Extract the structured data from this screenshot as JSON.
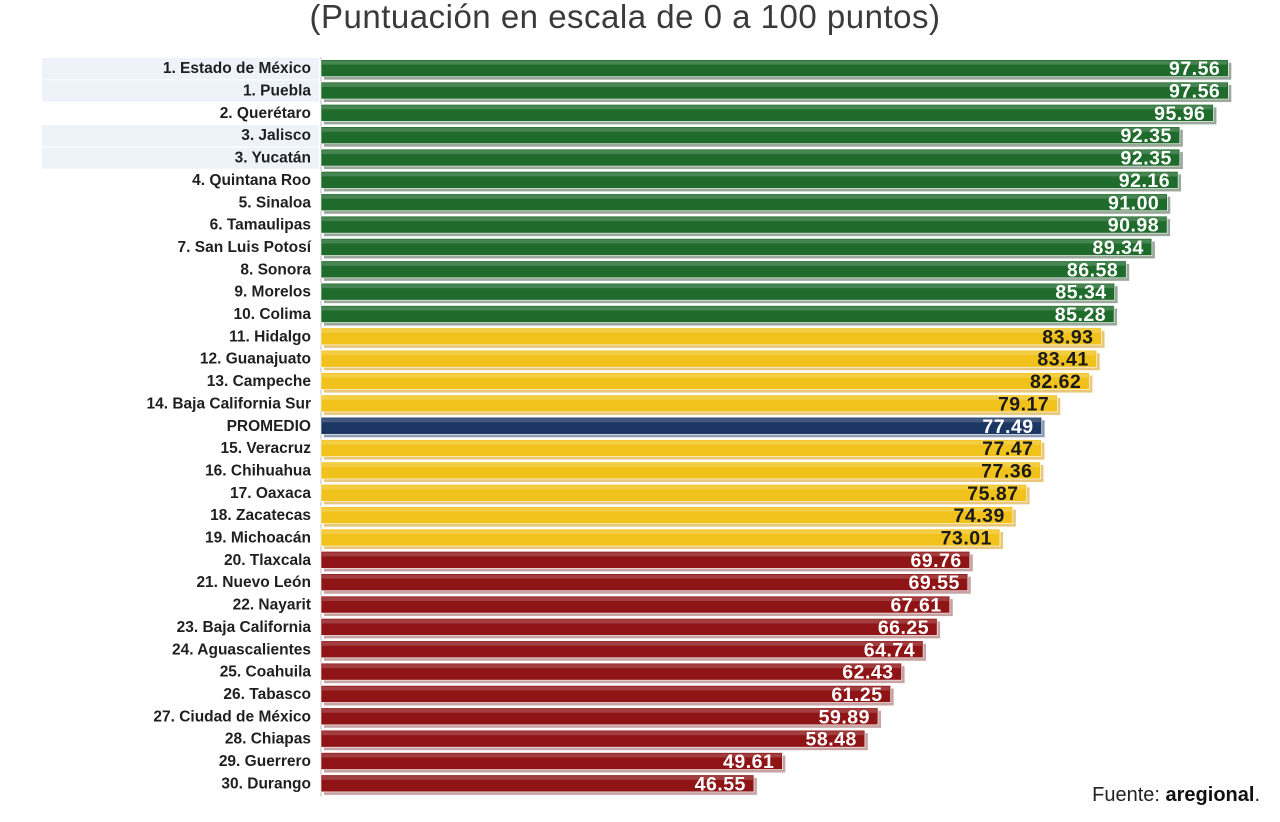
{
  "chart_data": {
    "type": "bar",
    "orientation": "horizontal",
    "title": "",
    "subtitle": "(Puntuación en escala de 0 a 100 puntos)",
    "xlim": [
      0,
      100
    ],
    "grid": false,
    "colors": {
      "green": "#1f6b2c",
      "yellow": "#f1c21b",
      "red": "#8e1416",
      "navy": "#1c3664",
      "highlight_row": "#eef3fa"
    },
    "categories": [
      "1. Estado de México",
      "1. Puebla",
      "2. Querétaro",
      "3. Jalisco",
      "3. Yucatán",
      "4. Quintana Roo",
      "5. Sinaloa",
      "6. Tamaulipas",
      "7. San Luis Potosí",
      "8. Sonora",
      "9. Morelos",
      "10. Colima",
      "11. Hidalgo",
      "12. Guanajuato",
      "13. Campeche",
      "14. Baja California Sur",
      "PROMEDIO",
      "15. Veracruz",
      "16. Chihuahua",
      "17. Oaxaca",
      "18. Zacatecas",
      "19. Michoacán",
      "20. Tlaxcala",
      "21. Nuevo León",
      "22. Nayarit",
      "23. Baja California",
      "24. Aguascalientes",
      "25. Coahuila",
      "26. Tabasco",
      "27. Ciudad de México",
      "28. Chiapas",
      "29. Guerrero",
      "30. Durango"
    ],
    "values": [
      97.56,
      97.56,
      95.96,
      92.35,
      92.35,
      92.16,
      91.0,
      90.98,
      89.34,
      86.58,
      85.34,
      85.28,
      83.93,
      83.41,
      82.62,
      79.17,
      77.49,
      77.47,
      77.36,
      75.87,
      74.39,
      73.01,
      69.76,
      69.55,
      67.61,
      66.25,
      64.74,
      62.43,
      61.25,
      59.89,
      58.48,
      49.61,
      46.55
    ],
    "value_labels": [
      "97.56",
      "97.56",
      "95.96",
      "92.35",
      "92.35",
      "92.16",
      "91.00",
      "90.98",
      "89.34",
      "86.58",
      "85.34",
      "85.28",
      "83.93",
      "83.41",
      "82.62",
      "79.17",
      "77.49",
      "77.47",
      "77.36",
      "75.87",
      "74.39",
      "73.01",
      "69.76",
      "69.55",
      "67.61",
      "66.25",
      "64.74",
      "62.43",
      "61.25",
      "59.89",
      "58.48",
      "49.61",
      "46.55"
    ],
    "bar_colors": [
      "green",
      "green",
      "green",
      "green",
      "green",
      "green",
      "green",
      "green",
      "green",
      "green",
      "green",
      "green",
      "yellow",
      "yellow",
      "yellow",
      "yellow",
      "navy",
      "yellow",
      "yellow",
      "yellow",
      "yellow",
      "yellow",
      "red",
      "red",
      "red",
      "red",
      "red",
      "red",
      "red",
      "red",
      "red",
      "red",
      "red"
    ],
    "highlighted_rows": [
      "1. Estado de México",
      "1. Puebla",
      "3. Jalisco",
      "3. Yucatán"
    ]
  },
  "source": {
    "prefix": "Fuente: ",
    "brand": "aregional",
    "suffix": "."
  }
}
